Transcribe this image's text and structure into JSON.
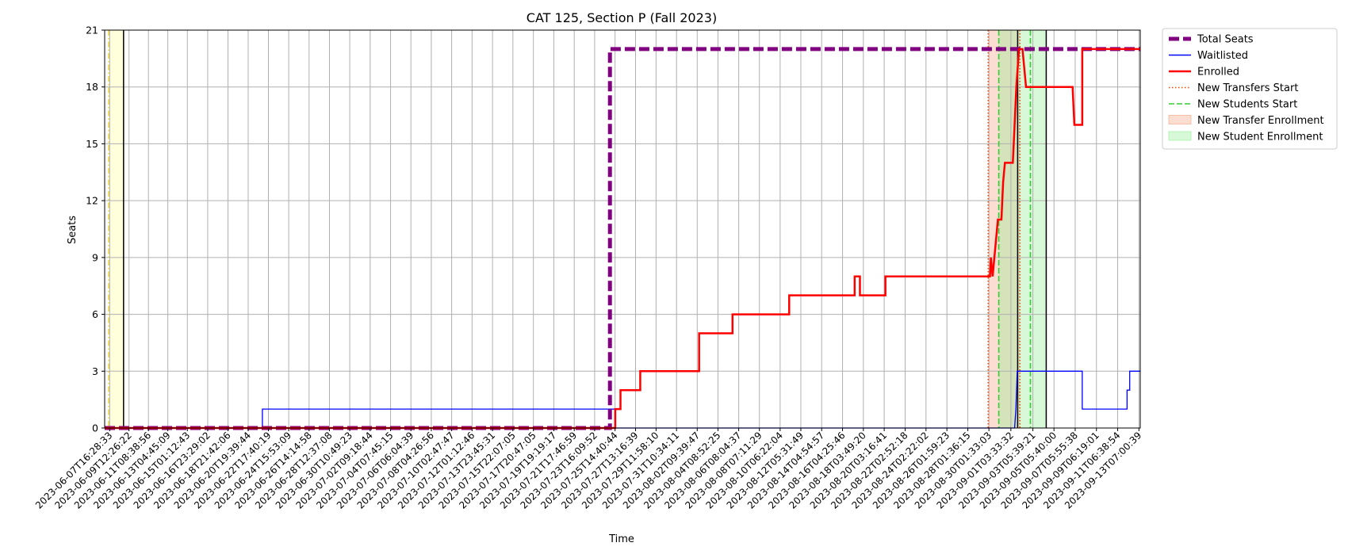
{
  "chart_data": {
    "type": "line",
    "title": "CAT 125, Section P (Fall 2023)",
    "xlabel": "Time",
    "ylabel": "Seats",
    "ylim": [
      0,
      21
    ],
    "xlim": [
      "2023-06-07T05:00",
      "2023-09-13T10:00"
    ],
    "yticks": [
      0,
      3,
      6,
      9,
      12,
      15,
      18,
      21
    ],
    "grid": true,
    "legend_position": "outside-top-right",
    "x_tick_labels": [
      "2023-06-07T16:28:33",
      "2023-06-09T12:26:22",
      "2023-06-11T08:38:56",
      "2023-06-13T04:45:09",
      "2023-06-15T01:12:43",
      "2023-06-16T23:29:02",
      "2023-06-18T21:42:06",
      "2023-06-20T19:39:44",
      "2023-06-22T17:40:19",
      "2023-06-24T15:53:09",
      "2023-06-26T14:14:58",
      "2023-06-28T12:37:08",
      "2023-06-30T10:49:23",
      "2023-07-02T09:18:44",
      "2023-07-04T07:45:15",
      "2023-07-06T06:04:39",
      "2023-07-08T04:26:56",
      "2023-07-10T02:47:47",
      "2023-07-12T01:12:46",
      "2023-07-13T23:45:31",
      "2023-07-15T22:07:05",
      "2023-07-17T20:47:05",
      "2023-07-19T19:19:17",
      "2023-07-21T17:46:59",
      "2023-07-23T16:09:52",
      "2023-07-25T14:40:44",
      "2023-07-27T13:16:39",
      "2023-07-29T11:58:10",
      "2023-07-31T10:34:11",
      "2023-08-02T09:39:47",
      "2023-08-04T08:52:25",
      "2023-08-06T08:04:37",
      "2023-08-08T07:11:29",
      "2023-08-10T06:22:04",
      "2023-08-12T05:31:49",
      "2023-08-14T04:54:57",
      "2023-08-16T04:25:46",
      "2023-08-18T03:49:20",
      "2023-08-20T03:16:41",
      "2023-08-22T02:52:18",
      "2023-08-24T02:22:02",
      "2023-08-26T01:59:23",
      "2023-08-28T01:36:15",
      "2023-08-30T01:33:03",
      "2023-09-01T03:33:32",
      "2023-09-03T05:39:21",
      "2023-09-05T05:40:00",
      "2023-09-07T05:55:38",
      "2023-09-09T06:19:01",
      "2023-09-11T06:38:54",
      "2023-09-13T07:00:39"
    ],
    "series": [
      {
        "name": "Total Seats",
        "color": "#800080",
        "style": "dashed",
        "points": [
          [
            "2023-06-07T05:00",
            0
          ],
          [
            "2023-07-25T03:00",
            0
          ],
          [
            "2023-07-25T03:00",
            20
          ],
          [
            "2023-09-13T10:00",
            20
          ]
        ]
      },
      {
        "name": "Waitlisted",
        "color": "#0000ff",
        "style": "solid",
        "points": [
          [
            "2023-06-07T05:00",
            0
          ],
          [
            "2023-06-22T04:00",
            0
          ],
          [
            "2023-06-22T04:00",
            1
          ],
          [
            "2023-07-25T16:00",
            1
          ],
          [
            "2023-07-25T16:00",
            0
          ],
          [
            "2023-09-01T12:00",
            0
          ],
          [
            "2023-09-01T15:00",
            1
          ],
          [
            "2023-09-01T18:00",
            3
          ],
          [
            "2023-09-07T22:00",
            3
          ],
          [
            "2023-09-07T22:00",
            1
          ],
          [
            "2023-09-12T04:00",
            1
          ],
          [
            "2023-09-12T04:00",
            2
          ],
          [
            "2023-09-12T10:00",
            2
          ],
          [
            "2023-09-12T10:00",
            3
          ],
          [
            "2023-09-13T10:00",
            3
          ]
        ]
      },
      {
        "name": "Enrolled",
        "color": "#ff0000",
        "style": "solid",
        "points": [
          [
            "2023-06-07T05:00",
            0
          ],
          [
            "2023-07-25T15:00",
            0
          ],
          [
            "2023-07-25T15:00",
            1
          ],
          [
            "2023-07-26T03:00",
            1
          ],
          [
            "2023-07-26T03:00",
            2
          ],
          [
            "2023-07-28T00:00",
            2
          ],
          [
            "2023-07-28T00:00",
            3
          ],
          [
            "2023-08-02T14:00",
            3
          ],
          [
            "2023-08-02T14:00",
            5
          ],
          [
            "2023-08-05T18:00",
            5
          ],
          [
            "2023-08-05T18:00",
            6
          ],
          [
            "2023-08-11T03:00",
            6
          ],
          [
            "2023-08-11T03:00",
            7
          ],
          [
            "2023-08-17T08:00",
            7
          ],
          [
            "2023-08-17T08:00",
            8
          ],
          [
            "2023-08-17T20:00",
            8
          ],
          [
            "2023-08-17T20:00",
            7
          ],
          [
            "2023-08-20T06:00",
            7
          ],
          [
            "2023-08-20T06:00",
            8
          ],
          [
            "2023-08-30T04:00",
            8
          ],
          [
            "2023-08-30T06:00",
            9
          ],
          [
            "2023-08-30T10:00",
            8
          ],
          [
            "2023-08-30T14:00",
            9
          ],
          [
            "2023-08-30T18:00",
            10
          ],
          [
            "2023-08-30T22:00",
            11
          ],
          [
            "2023-08-31T06:00",
            11
          ],
          [
            "2023-08-31T08:00",
            12
          ],
          [
            "2023-08-31T10:00",
            13
          ],
          [
            "2023-08-31T14:00",
            14
          ],
          [
            "2023-09-01T08:00",
            14
          ],
          [
            "2023-09-01T10:00",
            15
          ],
          [
            "2023-09-01T12:00",
            16
          ],
          [
            "2023-09-01T16:00",
            18
          ],
          [
            "2023-09-01T22:00",
            20
          ],
          [
            "2023-09-02T06:00",
            20
          ],
          [
            "2023-09-02T10:00",
            19
          ],
          [
            "2023-09-02T14:00",
            18
          ],
          [
            "2023-09-07T00:00",
            18
          ],
          [
            "2023-09-07T02:00",
            17
          ],
          [
            "2023-09-07T04:00",
            16
          ],
          [
            "2023-09-07T22:00",
            16
          ],
          [
            "2023-09-07T22:00",
            20
          ],
          [
            "2023-09-13T10:00",
            20
          ]
        ]
      }
    ],
    "markers": [
      {
        "name": "New Transfers Start",
        "color": "#ff4500",
        "style": "dotted",
        "dates": [
          "2023-08-30T00:00",
          "2023-09-02T00:00"
        ]
      },
      {
        "name": "New Students Start",
        "color": "#32cd32",
        "style": "dashed",
        "dates": [
          "2023-08-31T00:00",
          "2023-09-03T00:00"
        ]
      }
    ],
    "regions": [
      {
        "name": "New Transfer Enrollment",
        "color": "#f4a07a",
        "start": "2023-08-30T00:00",
        "end": "2023-09-02T00:00"
      },
      {
        "name": "New Student Enrollment",
        "color": "#90ee90",
        "start": "2023-08-31T00:00",
        "end": "2023-09-04T12:00"
      }
    ],
    "unlabeled_markers": [
      {
        "color": "#e6c619",
        "style": "dashdot",
        "dates": [
          "2023-06-07T14:00"
        ]
      },
      {
        "color": "#000000",
        "style": "solid",
        "dates": [
          "2023-06-09T00:00",
          "2023-09-01T19:00",
          "2023-09-04T12:00"
        ]
      }
    ],
    "unlabeled_regions": [
      {
        "color": "#ffff99",
        "start": "2023-06-07T14:00",
        "end": "2023-06-09T00:00"
      }
    ],
    "legend_entries": [
      {
        "label": "Total Seats",
        "kind": "line",
        "color": "#800080",
        "style": "dashed"
      },
      {
        "label": "Waitlisted",
        "kind": "line",
        "color": "#0000ff",
        "style": "solid"
      },
      {
        "label": "Enrolled",
        "kind": "line",
        "color": "#ff0000",
        "style": "solid"
      },
      {
        "label": "New Transfers Start",
        "kind": "line",
        "color": "#ff4500",
        "style": "dotted"
      },
      {
        "label": "New Students Start",
        "kind": "line",
        "color": "#32cd32",
        "style": "dashed"
      },
      {
        "label": "New Transfer Enrollment",
        "kind": "patch",
        "color": "#f4a07a"
      },
      {
        "label": "New Student Enrollment",
        "kind": "patch",
        "color": "#90ee90"
      }
    ]
  }
}
